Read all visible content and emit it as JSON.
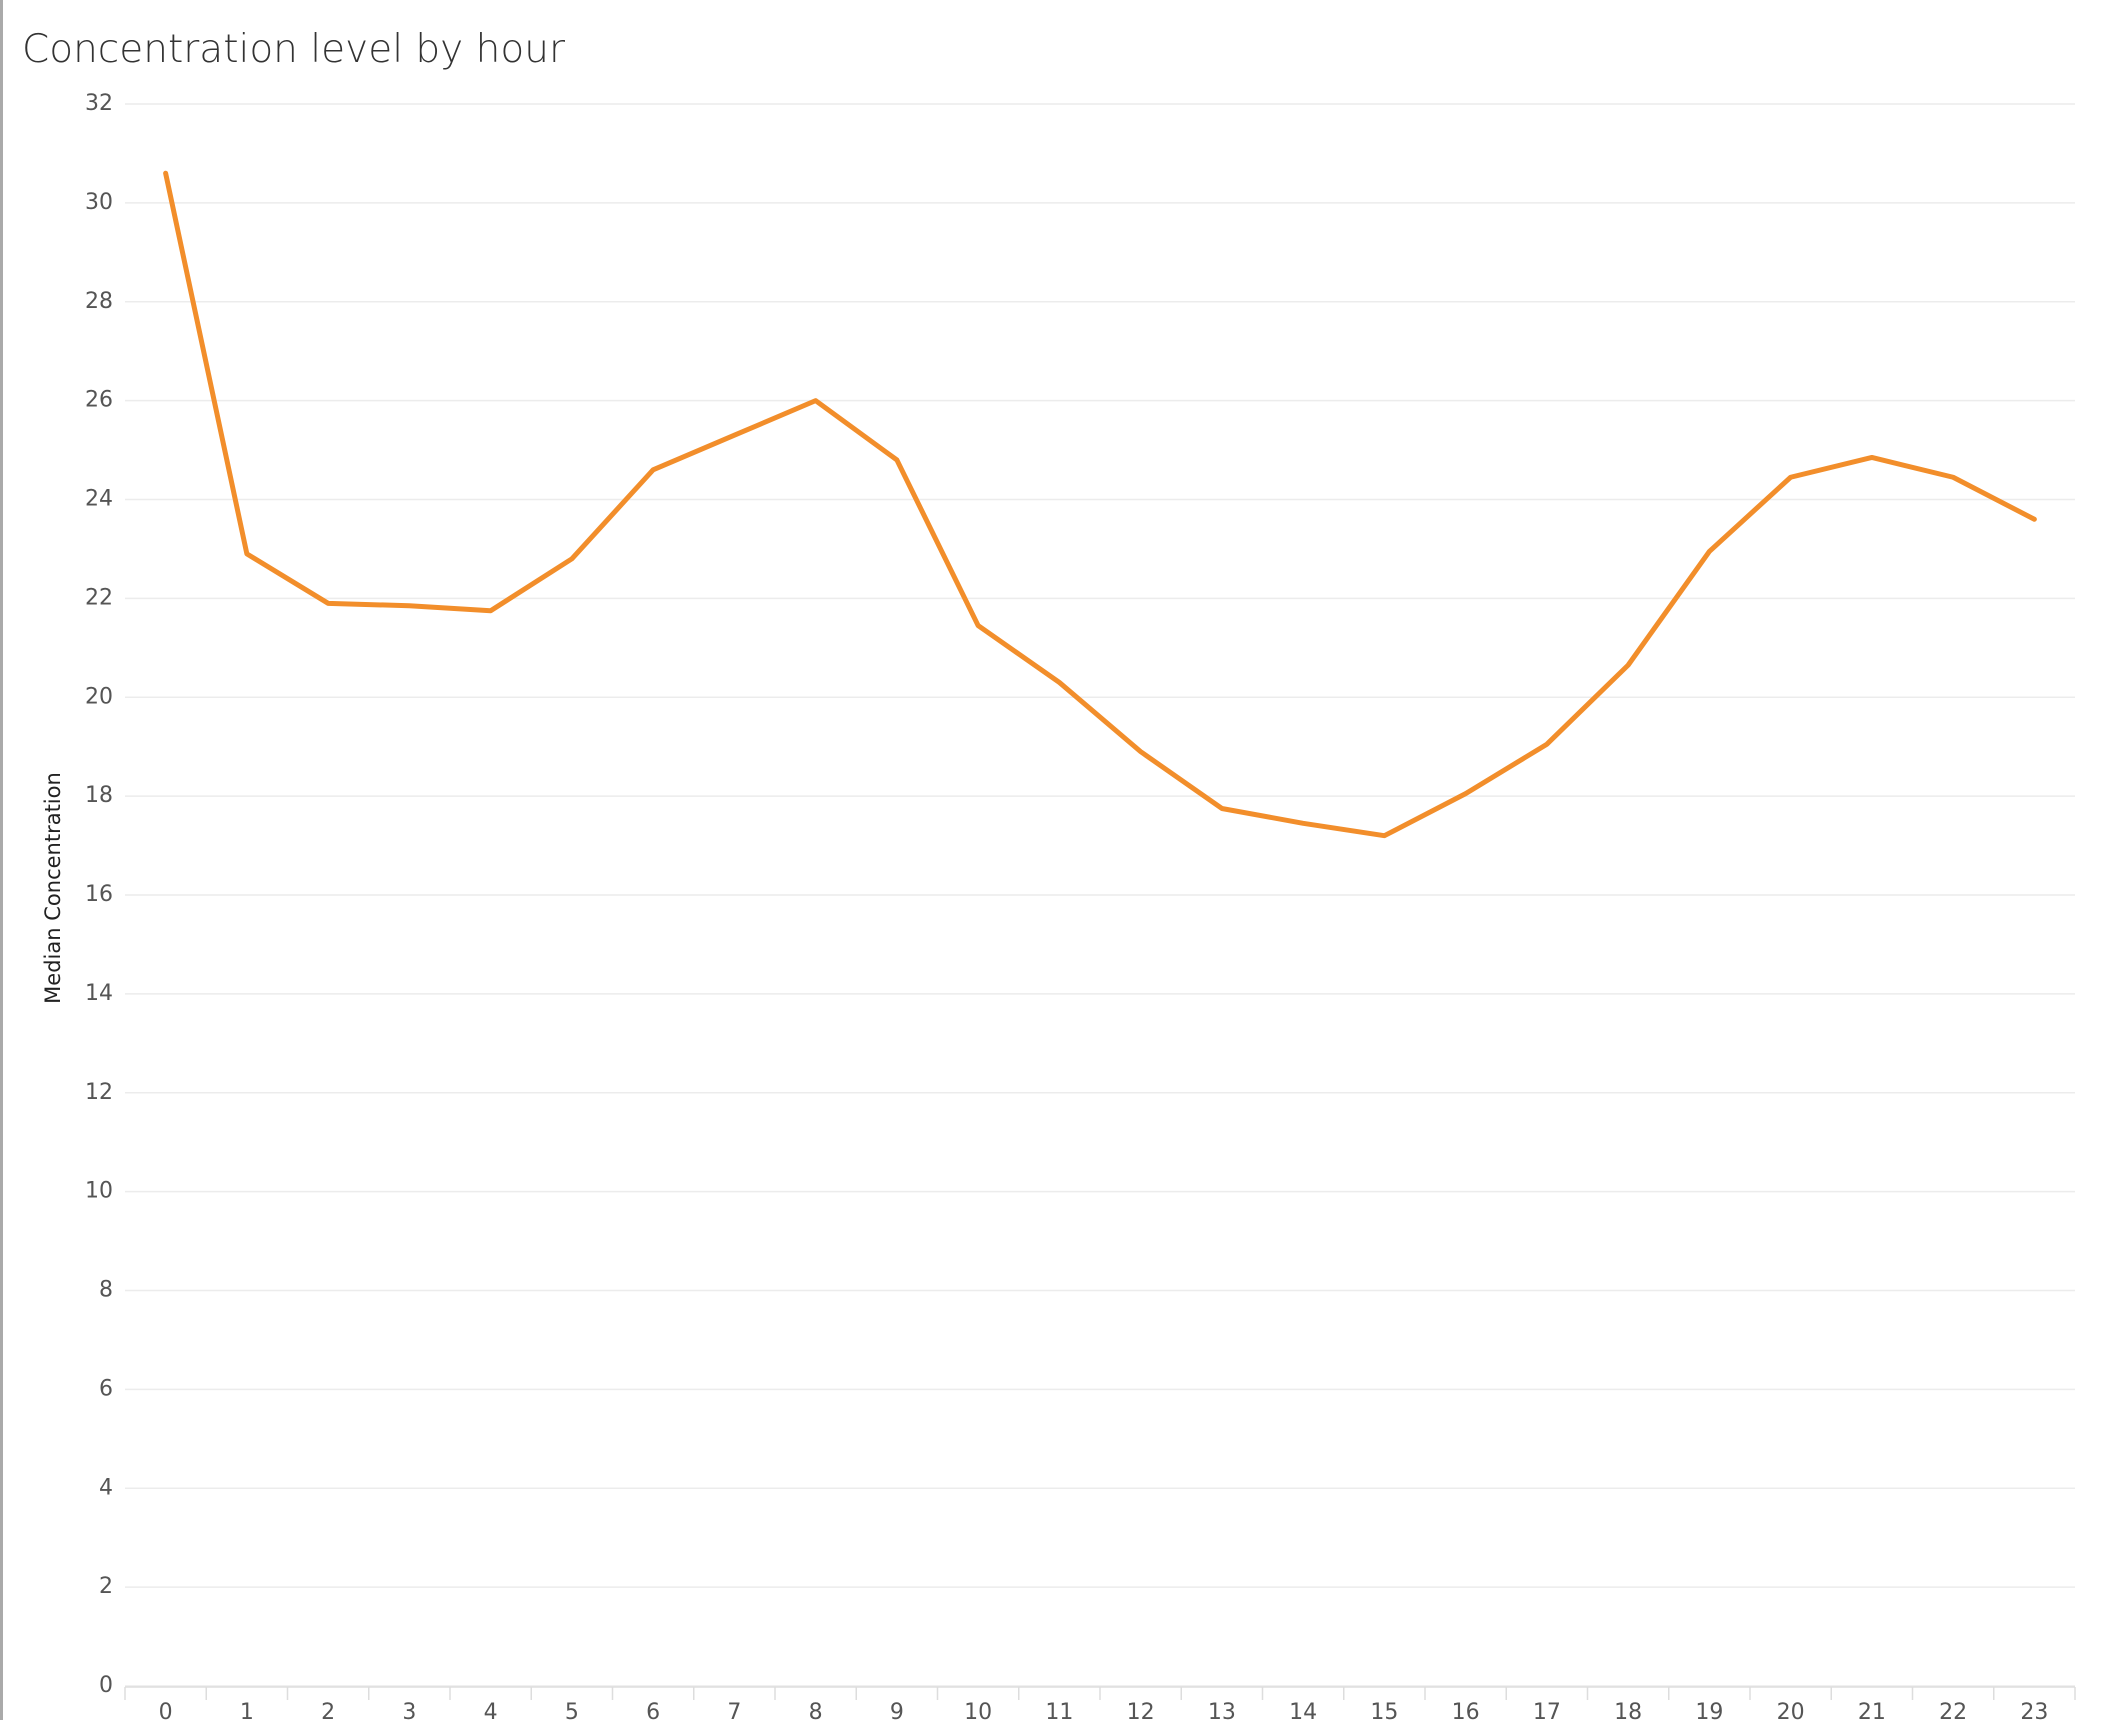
{
  "chart_data": {
    "type": "line",
    "title": "Concentration level by hour",
    "y_label": "Median Concentration",
    "categories": [
      "0",
      "1",
      "2",
      "3",
      "4",
      "5",
      "6",
      "7",
      "8",
      "9",
      "10",
      "11",
      "12",
      "13",
      "14",
      "15",
      "16",
      "17",
      "18",
      "19",
      "20",
      "21",
      "22",
      "23"
    ],
    "values": [
      30.6,
      22.9,
      21.9,
      21.85,
      21.75,
      22.8,
      24.6,
      25.3,
      26.0,
      24.8,
      21.45,
      20.3,
      18.9,
      17.75,
      17.45,
      17.2,
      18.05,
      19.05,
      20.65,
      22.95,
      24.45,
      24.85,
      24.45,
      23.6
    ],
    "color": "#f28e2b",
    "ylim": [
      0,
      32
    ],
    "yticks": [
      0,
      2,
      4,
      6,
      8,
      10,
      12,
      14,
      16,
      18,
      20,
      22,
      24,
      26,
      28,
      30,
      32
    ],
    "grid": true
  }
}
